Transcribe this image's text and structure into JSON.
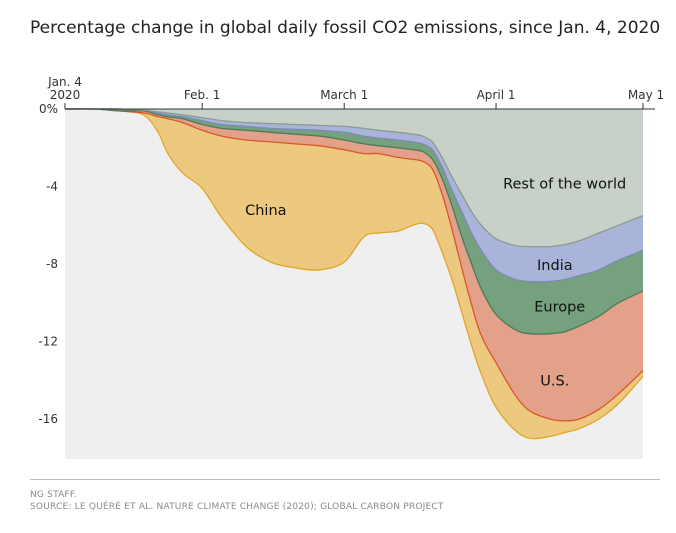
{
  "chart_data": {
    "type": "area",
    "title": "Percentage change in global daily fossil CO2 emissions, since Jan. 4, 2020",
    "ylim": [
      -18,
      0
    ],
    "yticks": [
      0,
      -4,
      -8,
      -12,
      -16
    ],
    "ytick_labels": [
      "0%",
      "-4",
      "-8",
      "-12",
      "-16"
    ],
    "xlim": [
      "2020-01-04",
      "2020-05-01"
    ],
    "xticks": [
      {
        "date": "2020-01-04",
        "label": "Jan. 4\n2020"
      },
      {
        "date": "2020-02-01",
        "label": "Feb. 1"
      },
      {
        "date": "2020-03-01",
        "label": "March 1"
      },
      {
        "date": "2020-04-01",
        "label": "April 1"
      },
      {
        "date": "2020-05-01",
        "label": "May 1"
      }
    ],
    "x": [
      "2020-01-04",
      "2020-01-10",
      "2020-01-15",
      "2020-01-20",
      "2020-01-23",
      "2020-01-25",
      "2020-01-28",
      "2020-02-01",
      "2020-02-05",
      "2020-02-10",
      "2020-02-15",
      "2020-02-20",
      "2020-02-25",
      "2020-03-01",
      "2020-03-05",
      "2020-03-08",
      "2020-03-12",
      "2020-03-15",
      "2020-03-17",
      "2020-03-19",
      "2020-03-21",
      "2020-03-23",
      "2020-03-25",
      "2020-03-27",
      "2020-03-29",
      "2020-04-01",
      "2020-04-05",
      "2020-04-08",
      "2020-04-12",
      "2020-04-15",
      "2020-04-18",
      "2020-04-22",
      "2020-04-26",
      "2020-05-01"
    ],
    "series": [
      {
        "name": "China",
        "color": "#ecc97e",
        "values": [
          0,
          0,
          -0.1,
          -0.3,
          -1.2,
          -2.3,
          -3.3,
          -4.1,
          -5.6,
          -7.1,
          -7.9,
          -8.2,
          -8.3,
          -7.9,
          -6.6,
          -6.4,
          -6.3,
          -6.0,
          -5.9,
          -6.2,
          -7.4,
          -8.8,
          -10.5,
          -12.2,
          -13.7,
          -15.4,
          -16.6,
          -17.0,
          -16.9,
          -16.7,
          -16.5,
          -16.0,
          -15.2,
          -13.8
        ]
      },
      {
        "name": "U.S.",
        "color": "#e3a18a",
        "values": [
          0,
          0,
          -0.1,
          -0.2,
          -0.4,
          -0.5,
          -0.7,
          -1.1,
          -1.4,
          -1.6,
          -1.7,
          -1.8,
          -1.9,
          -2.1,
          -2.3,
          -2.3,
          -2.5,
          -2.6,
          -2.7,
          -3.1,
          -4.4,
          -6.2,
          -8.2,
          -10.1,
          -11.7,
          -13.1,
          -14.8,
          -15.6,
          -16.0,
          -16.1,
          -16.0,
          -15.5,
          -14.7,
          -13.5
        ]
      },
      {
        "name": "Europe",
        "color": "#75a17f",
        "values": [
          0,
          0,
          -0.1,
          -0.1,
          -0.3,
          -0.4,
          -0.5,
          -0.8,
          -1.0,
          -1.1,
          -1.2,
          -1.3,
          -1.4,
          -1.6,
          -1.8,
          -1.9,
          -2.0,
          -2.1,
          -2.2,
          -2.6,
          -3.6,
          -5.0,
          -6.6,
          -8.0,
          -9.3,
          -10.6,
          -11.4,
          -11.6,
          -11.6,
          -11.5,
          -11.2,
          -10.7,
          -10.0,
          -9.4
        ]
      },
      {
        "name": "India",
        "color": "#aab4da",
        "values": [
          0,
          0,
          0,
          -0.05,
          -0.2,
          -0.3,
          -0.4,
          -0.6,
          -0.8,
          -0.9,
          -1.0,
          -1.05,
          -1.1,
          -1.2,
          -1.4,
          -1.5,
          -1.6,
          -1.7,
          -1.8,
          -2.1,
          -3.0,
          -4.2,
          -5.3,
          -6.4,
          -7.3,
          -8.3,
          -8.8,
          -8.9,
          -8.9,
          -8.8,
          -8.6,
          -8.3,
          -7.8,
          -7.3
        ]
      },
      {
        "name": "Rest of the world",
        "color": "#c7d1c8",
        "values": [
          0,
          0,
          0,
          -0.05,
          -0.15,
          -0.2,
          -0.3,
          -0.45,
          -0.6,
          -0.7,
          -0.75,
          -0.8,
          -0.85,
          -0.9,
          -1.0,
          -1.1,
          -1.2,
          -1.3,
          -1.4,
          -1.7,
          -2.5,
          -3.5,
          -4.4,
          -5.3,
          -6.0,
          -6.7,
          -7.05,
          -7.1,
          -7.1,
          -7.0,
          -6.8,
          -6.4,
          -6.0,
          -5.5
        ]
      }
    ],
    "annotations": [
      {
        "text": "China",
        "series": "China"
      },
      {
        "text": "U.S.",
        "series": "U.S."
      },
      {
        "text": "Europe",
        "series": "Europe"
      },
      {
        "text": "India",
        "series": "India"
      },
      {
        "text": "Rest of the world",
        "series": "Rest of the world"
      }
    ],
    "grid": false,
    "legend": "none"
  },
  "footer": {
    "credit": "NG STAFF.",
    "source": "SOURCE: LE QUÉRÉ ET AL. NATURE CLIMATE CHANGE (2020); GLOBAL CARBON PROJECT"
  }
}
